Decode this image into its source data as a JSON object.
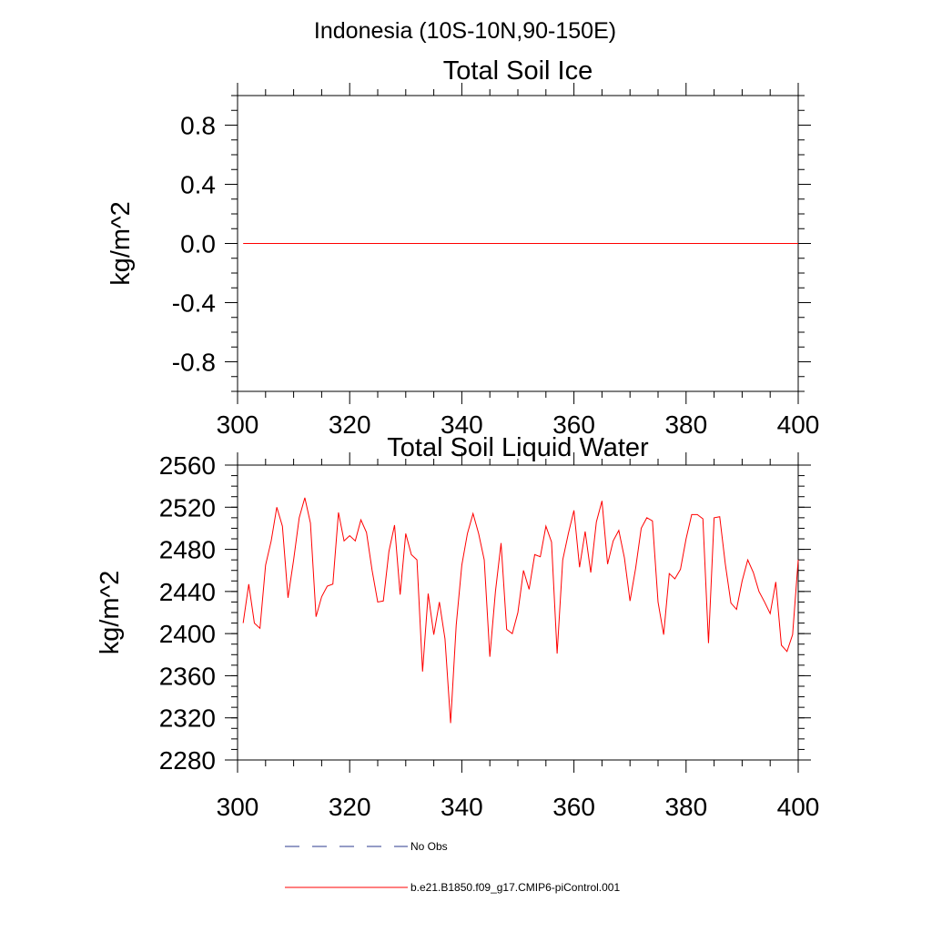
{
  "figure_title": "Indonesia (10S-10N,90-150E)",
  "colors": {
    "series": "#ff0000",
    "obs": "#2b3a8c",
    "axis": "#000000",
    "background": "#ffffff"
  },
  "chart_data": [
    {
      "type": "line",
      "title": "Total Soil Ice",
      "xlabel": "",
      "ylabel": "kg/m^2",
      "xlim": [
        300,
        400
      ],
      "ylim": [
        -1.0,
        1.0
      ],
      "xticks": [
        300,
        320,
        340,
        360,
        380,
        400
      ],
      "xtick_labels": [
        "300",
        "320",
        "340",
        "360",
        "380",
        "400"
      ],
      "yticks": [
        0.8,
        0.4,
        0.0,
        -0.4,
        -0.8
      ],
      "ytick_labels": [
        "0.8",
        "0.4",
        "0.0",
        "-0.4",
        "-0.8"
      ],
      "series": [
        {
          "name": "b.e21.B1850.f09_g17.CMIP6-piControl.001",
          "x_start": 301,
          "x_end": 400,
          "constant": 0.0
        }
      ]
    },
    {
      "type": "line",
      "title": "Total Soil Liquid Water",
      "xlabel": "",
      "ylabel": "kg/m^2",
      "xlim": [
        300,
        400
      ],
      "ylim": [
        2280,
        2560
      ],
      "xticks": [
        300,
        320,
        340,
        360,
        380,
        400
      ],
      "xtick_labels": [
        "300",
        "320",
        "340",
        "360",
        "380",
        "400"
      ],
      "yticks": [
        2560,
        2520,
        2480,
        2440,
        2400,
        2360,
        2320,
        2280
      ],
      "ytick_labels": [
        "2560",
        "2520",
        "2480",
        "2440",
        "2400",
        "2360",
        "2320",
        "2280"
      ],
      "series": [
        {
          "name": "b.e21.B1850.f09_g17.CMIP6-piControl.001",
          "x_start": 301,
          "values": [
            2410,
            2447,
            2410,
            2405,
            2465,
            2488,
            2520,
            2502,
            2434,
            2470,
            2510,
            2529,
            2505,
            2416,
            2435,
            2445,
            2447,
            2515,
            2488,
            2493,
            2488,
            2508,
            2496,
            2460,
            2430,
            2431,
            2478,
            2503,
            2437,
            2495,
            2475,
            2470,
            2364,
            2438,
            2399,
            2430,
            2395,
            2315,
            2408,
            2465,
            2495,
            2514,
            2495,
            2470,
            2378,
            2440,
            2486,
            2404,
            2400,
            2420,
            2460,
            2442,
            2475,
            2473,
            2502,
            2487,
            2381,
            2470,
            2495,
            2517,
            2463,
            2497,
            2458,
            2506,
            2526,
            2466,
            2488,
            2498,
            2472,
            2431,
            2462,
            2500,
            2510,
            2507,
            2430,
            2399,
            2457,
            2452,
            2461,
            2490,
            2513,
            2513,
            2509,
            2391,
            2510,
            2511,
            2466,
            2429,
            2423,
            2450,
            2470,
            2458,
            2440,
            2430,
            2419,
            2449,
            2389,
            2383,
            2399,
            2470
          ]
        }
      ]
    }
  ],
  "legend": {
    "items": [
      {
        "label": "No Obs",
        "style": "dashed",
        "color": "#2b3a8c"
      },
      {
        "label": "b.e21.B1850.f09_g17.CMIP6-piControl.001",
        "style": "solid",
        "color": "#ff0000"
      }
    ]
  }
}
